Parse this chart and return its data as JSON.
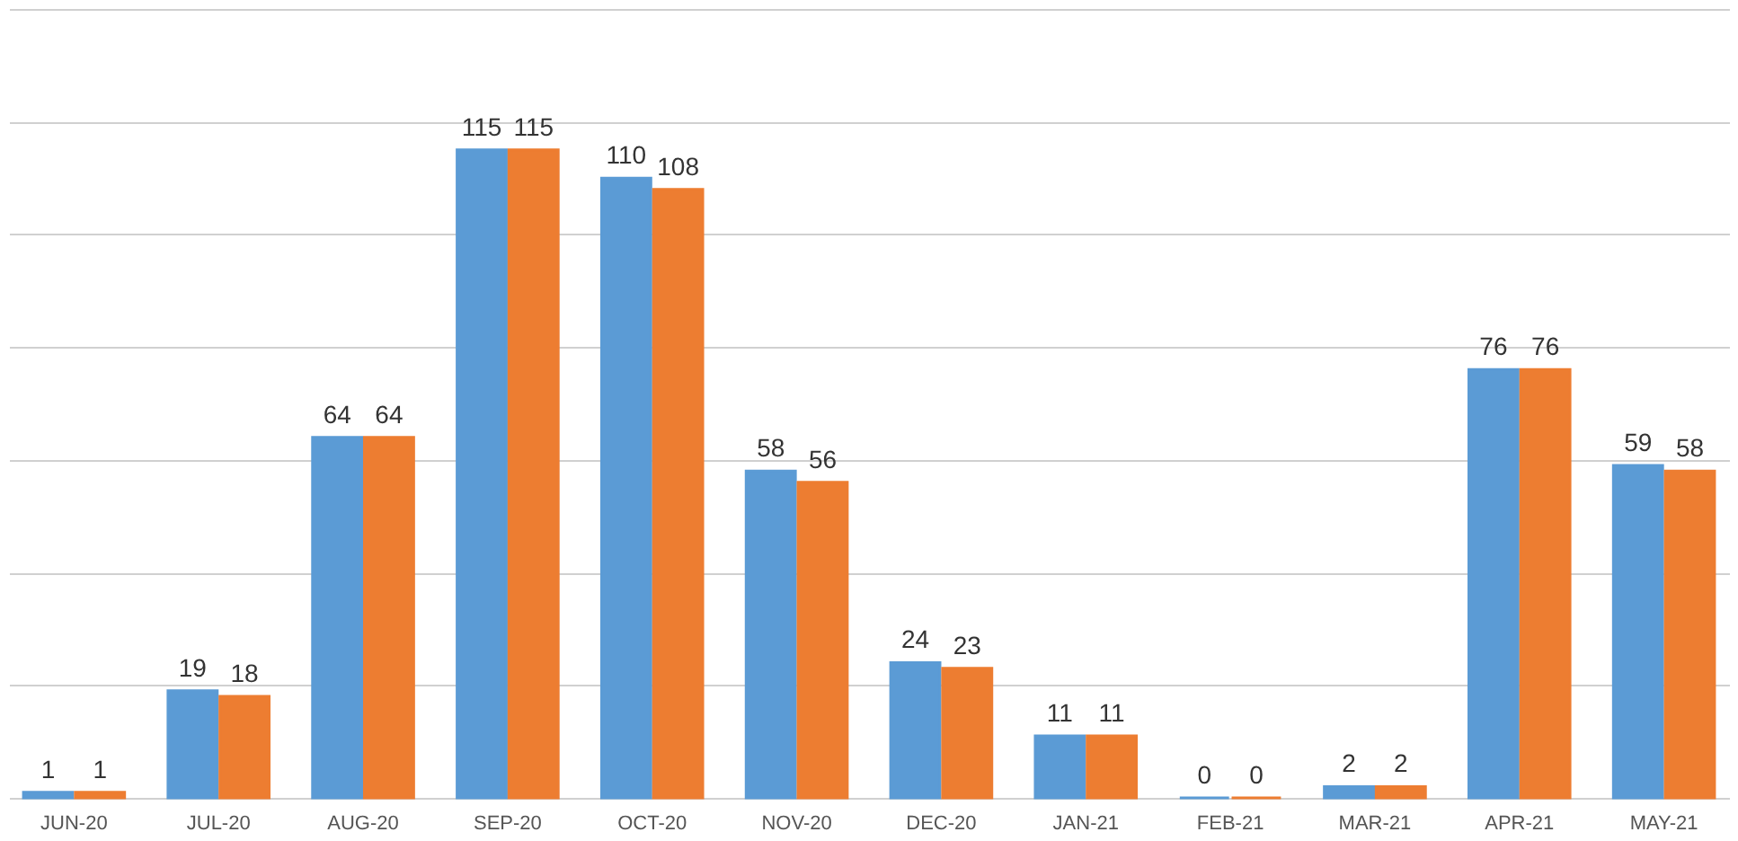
{
  "chart_data": {
    "type": "bar",
    "categories": [
      "JUN-20",
      "JUL-20",
      "AUG-20",
      "SEP-20",
      "OCT-20",
      "NOV-20",
      "DEC-20",
      "JAN-21",
      "FEB-21",
      "MAR-21",
      "APR-21",
      "MAY-21"
    ],
    "series": [
      {
        "color": "#5b9bd5",
        "values": [
          1,
          19,
          64,
          115,
          110,
          58,
          24,
          11,
          0,
          2,
          76,
          59
        ]
      },
      {
        "color": "#ed7d31",
        "values": [
          1,
          18,
          64,
          115,
          108,
          56,
          23,
          11,
          0,
          2,
          76,
          58
        ]
      }
    ],
    "ylim": [
      0,
      140
    ],
    "yticks": [
      {
        "value": 0,
        "label": null
      },
      {
        "value": 20,
        "label": null
      },
      {
        "value": 40,
        "label": null
      },
      {
        "value": 60,
        "label": null
      },
      {
        "value": 80,
        "label": null
      },
      {
        "value": 100,
        "label": null
      },
      {
        "value": 120,
        "label": null
      },
      {
        "value": 140,
        "label": null
      }
    ],
    "grid": "y",
    "tick_labels": "x",
    "data_labels": true,
    "legend": false
  }
}
